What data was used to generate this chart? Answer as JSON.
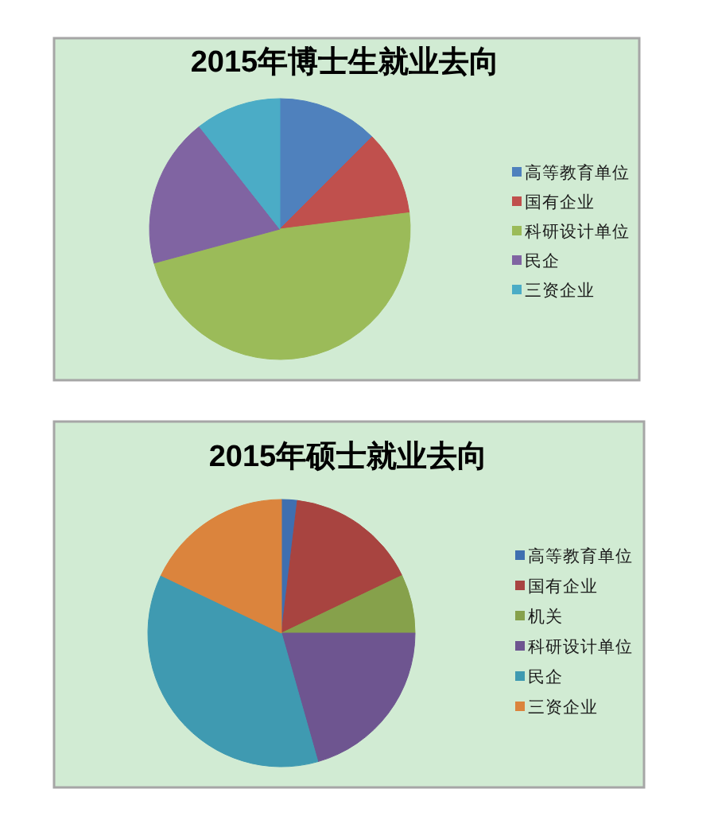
{
  "chart_data": [
    {
      "type": "pie",
      "title": "2015年博士生就业去向",
      "categories": [
        "高等教育单位",
        "国有企业",
        "科研设计单位",
        "民企",
        "三资企业"
      ],
      "values": [
        12.5,
        10.5,
        47.8,
        18.6,
        10.6
      ],
      "colors": [
        "#4f81bd",
        "#c0504d",
        "#9bbb59",
        "#8064a2",
        "#4bacc6"
      ],
      "legend": "right"
    },
    {
      "type": "pie",
      "title": "2015年硕士就业去向",
      "categories": [
        "高等教育单位",
        "国有企业",
        "机关",
        "科研设计单位",
        "民企",
        "三资企业"
      ],
      "values": [
        1.9,
        16.0,
        7.1,
        20.6,
        36.5,
        17.9
      ],
      "colors": [
        "#3f6fb0",
        "#a84440",
        "#86a14b",
        "#6e5590",
        "#3f9ab1",
        "#db843d"
      ],
      "legend": "right"
    }
  ]
}
